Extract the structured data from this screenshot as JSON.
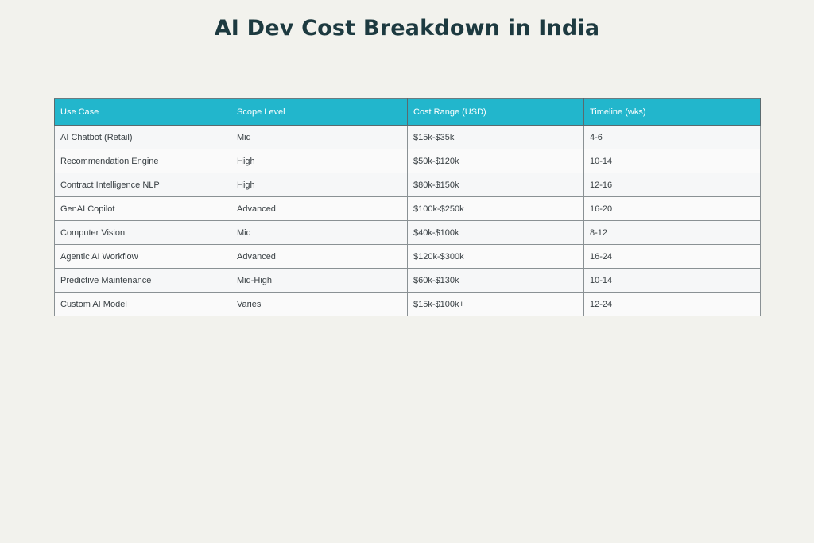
{
  "page_title": "AI Dev Cost Breakdown in India",
  "table": {
    "headers": [
      "Use Case",
      "Scope Level",
      "Cost Range (USD)",
      "Timeline (wks)"
    ],
    "rows": [
      [
        "AI Chatbot (Retail)",
        "Mid",
        "$15k-$35k",
        "4-6"
      ],
      [
        "Recommendation Engine",
        "High",
        "$50k-$120k",
        "10-14"
      ],
      [
        "Contract Intelligence NLP",
        "High",
        "$80k-$150k",
        "12-16"
      ],
      [
        "GenAI Copilot",
        "Advanced",
        "$100k-$250k",
        "16-20"
      ],
      [
        "Computer Vision",
        "Mid",
        "$40k-$100k",
        "8-12"
      ],
      [
        "Agentic AI Workflow",
        "Advanced",
        "$120k-$300k",
        "16-24"
      ],
      [
        "Predictive Maintenance",
        "Mid-High",
        "$60k-$130k",
        "10-14"
      ],
      [
        "Custom AI Model",
        "Varies",
        "$15k-$100k+",
        "12-24"
      ]
    ]
  },
  "colors": {
    "background": "#f2f2ed",
    "header_bg": "#22b6cc",
    "title": "#1d3a40"
  }
}
